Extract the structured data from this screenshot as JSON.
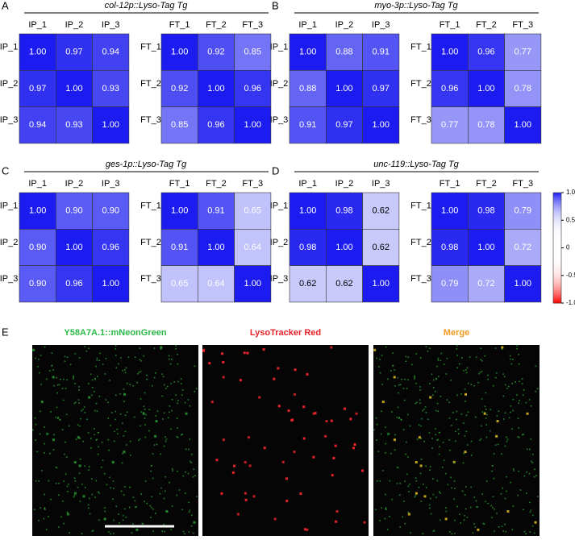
{
  "panel_labels": [
    "A",
    "B",
    "C",
    "D",
    "E"
  ],
  "chart_data": [
    {
      "type": "heatmap",
      "title": "col-12p::Lyso-Tag Tg",
      "xcategories": [
        "IP_1",
        "IP_2",
        "IP_3"
      ],
      "ycategories": [
        "IP_1",
        "IP_2",
        "IP_3"
      ],
      "values": [
        [
          1.0,
          0.97,
          0.94
        ],
        [
          0.97,
          1.0,
          0.93
        ],
        [
          0.94,
          0.93,
          1.0
        ]
      ],
      "value_labels": [
        [
          "1.00",
          "0.97",
          "0.94"
        ],
        [
          "0.97",
          "1.00",
          "0.93"
        ],
        [
          "0.94",
          "0.93",
          "1.00"
        ]
      ],
      "colors": [
        "#ff0000",
        "#ffffff",
        "#1c1cf0"
      ],
      "zlim": [
        -1,
        1
      ]
    },
    {
      "type": "heatmap",
      "xcategories": [
        "FT_1",
        "FT_2",
        "FT_3"
      ],
      "ycategories": [
        "FT_1",
        "FT_2",
        "FT_3"
      ],
      "values": [
        [
          1.0,
          0.92,
          0.85
        ],
        [
          0.92,
          1.0,
          0.96
        ],
        [
          0.85,
          0.96,
          1.0
        ]
      ],
      "value_labels": [
        [
          "1.00",
          "0.92",
          "0.85"
        ],
        [
          "0.92",
          "1.00",
          "0.96"
        ],
        [
          "0.85",
          "0.96",
          "1.00"
        ]
      ],
      "colors": [
        "#ff0000",
        "#ffffff",
        "#1c1cf0"
      ],
      "zlim": [
        -1,
        1
      ]
    },
    {
      "type": "heatmap",
      "title": "myo-3p::Lyso-Tag Tg",
      "xcategories": [
        "IP_1",
        "IP_2",
        "IP_3"
      ],
      "ycategories": [
        "IP_1",
        "IP_2",
        "IP_3"
      ],
      "values": [
        [
          1.0,
          0.88,
          0.91
        ],
        [
          0.88,
          1.0,
          0.97
        ],
        [
          0.91,
          0.97,
          1.0
        ]
      ],
      "value_labels": [
        [
          "1.00",
          "0.88",
          "0.91"
        ],
        [
          "0.88",
          "1.00",
          "0.97"
        ],
        [
          "0.91",
          "0.97",
          "1.00"
        ]
      ],
      "colors": [
        "#ff0000",
        "#ffffff",
        "#1c1cf0"
      ],
      "zlim": [
        -1,
        1
      ]
    },
    {
      "type": "heatmap",
      "xcategories": [
        "FT_1",
        "FT_2",
        "FT_3"
      ],
      "ycategories": [
        "FT_1",
        "FT_2",
        "FT_3"
      ],
      "values": [
        [
          1.0,
          0.96,
          0.77
        ],
        [
          0.96,
          1.0,
          0.78
        ],
        [
          0.77,
          0.78,
          1.0
        ]
      ],
      "value_labels": [
        [
          "1.00",
          "0.96",
          "0.77"
        ],
        [
          "0.96",
          "1.00",
          "0.78"
        ],
        [
          "0.77",
          "0.78",
          "1.00"
        ]
      ],
      "colors": [
        "#ff0000",
        "#ffffff",
        "#1c1cf0"
      ],
      "zlim": [
        -1,
        1
      ]
    },
    {
      "type": "heatmap",
      "title": "ges-1p::Lyso-Tag Tg",
      "xcategories": [
        "IP_1",
        "IP_2",
        "IP_3"
      ],
      "ycategories": [
        "IP_1",
        "IP_2",
        "IP_3"
      ],
      "values": [
        [
          1.0,
          0.9,
          0.9
        ],
        [
          0.9,
          1.0,
          0.96
        ],
        [
          0.9,
          0.96,
          1.0
        ]
      ],
      "value_labels": [
        [
          "1.00",
          "0.90",
          "0.90"
        ],
        [
          "0.90",
          "1.00",
          "0.96"
        ],
        [
          "0.90",
          "0.96",
          "1.00"
        ]
      ],
      "colors": [
        "#ff0000",
        "#ffffff",
        "#1c1cf0"
      ],
      "zlim": [
        -1,
        1
      ]
    },
    {
      "type": "heatmap",
      "xcategories": [
        "FT_1",
        "FT_2",
        "FT_3"
      ],
      "ycategories": [
        "FT_1",
        "FT_2",
        "FT_3"
      ],
      "values": [
        [
          1.0,
          0.91,
          0.65
        ],
        [
          0.91,
          1.0,
          0.64
        ],
        [
          0.65,
          0.64,
          1.0
        ]
      ],
      "value_labels": [
        [
          "1.00",
          "0.91",
          "0.65"
        ],
        [
          "0.91",
          "1.00",
          "0.64"
        ],
        [
          "0.65",
          "0.64",
          "1.00"
        ]
      ],
      "colors": [
        "#ff0000",
        "#ffffff",
        "#1c1cf0"
      ],
      "zlim": [
        -1,
        1
      ]
    },
    {
      "type": "heatmap",
      "title": "unc-119::Lyso-Tag Tg",
      "xcategories": [
        "IP_1",
        "IP_2",
        "IP_3"
      ],
      "ycategories": [
        "IP_1",
        "IP_2",
        "IP_3"
      ],
      "values": [
        [
          1.0,
          0.98,
          0.62
        ],
        [
          0.98,
          1.0,
          0.62
        ],
        [
          0.62,
          0.62,
          1.0
        ]
      ],
      "value_labels": [
        [
          "1.00",
          "0.98",
          "0.62"
        ],
        [
          "0.98",
          "1.00",
          "0.62"
        ],
        [
          "0.62",
          "0.62",
          "1.00"
        ]
      ],
      "colors": [
        "#ff0000",
        "#ffffff",
        "#1c1cf0"
      ],
      "zlim": [
        -1,
        1
      ]
    },
    {
      "type": "heatmap",
      "xcategories": [
        "FT_1",
        "FT_2",
        "FT_3"
      ],
      "ycategories": [
        "FT_1",
        "FT_2",
        "FT_3"
      ],
      "values": [
        [
          1.0,
          0.98,
          0.79
        ],
        [
          0.98,
          1.0,
          0.72
        ],
        [
          0.79,
          0.72,
          1.0
        ]
      ],
      "value_labels": [
        [
          "1.00",
          "0.98",
          "0.79"
        ],
        [
          "0.98",
          "1.00",
          "0.72"
        ],
        [
          "0.79",
          "0.72",
          "1.00"
        ]
      ],
      "colors": [
        "#ff0000",
        "#ffffff",
        "#1c1cf0"
      ],
      "zlim": [
        -1,
        1
      ],
      "zticks": [
        {
          "value": 1,
          "label": "1.0"
        },
        0.5,
        0,
        -0.5,
        {
          "value": -1,
          "label": "-1.0"
        }
      ]
    }
  ],
  "images": [
    {
      "label": "Y58A7A.1::mNeonGreen",
      "color": "#2db84a"
    },
    {
      "label": "LysoTracker Red",
      "color": "#e8232a"
    },
    {
      "label": "Merge",
      "color": "#f29a1f"
    }
  ]
}
